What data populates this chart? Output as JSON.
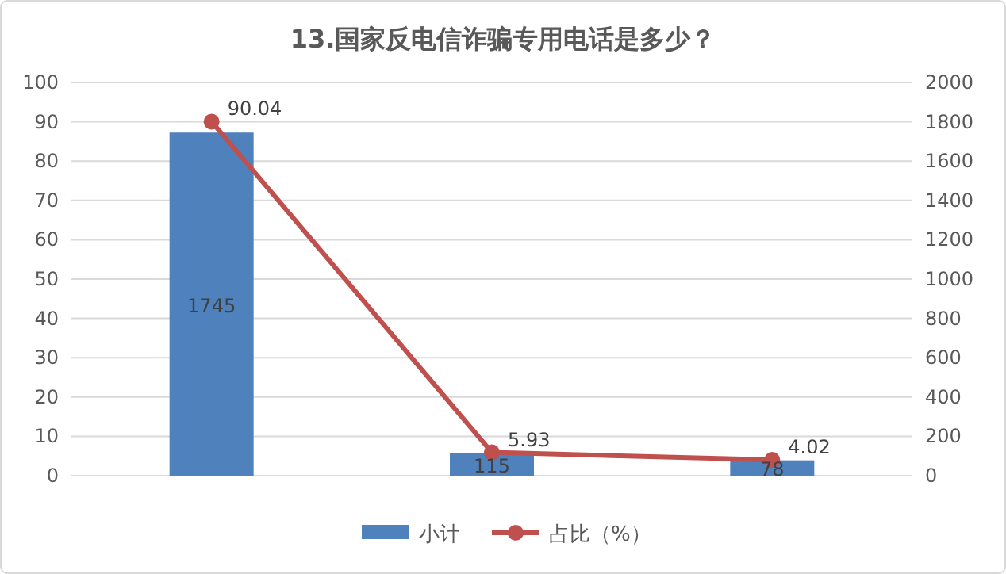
{
  "chart_data": {
    "type": "bar",
    "title": "13.国家反电信诈骗专用电话是多少？",
    "categories": [
      null,
      null,
      null
    ],
    "series": [
      {
        "name": "小计",
        "axis": "y2",
        "color": "#4f81bd",
        "values": [
          1745,
          115,
          78
        ]
      },
      {
        "name": "占比（%）",
        "type": "line",
        "color": "#c0504d",
        "values": [
          90.04,
          5.93,
          4.02
        ]
      }
    ],
    "ylim": [
      0,
      100
    ],
    "yticks": [
      0,
      10,
      20,
      30,
      40,
      50,
      60,
      70,
      80,
      90,
      100
    ],
    "y2lim": [
      0,
      2000
    ],
    "y2ticks": [
      0,
      200,
      400,
      600,
      800,
      1000,
      1200,
      1400,
      1600,
      1800,
      2000
    ],
    "grid": "y",
    "legend": "bottom",
    "marker": "circle",
    "line_style": "solid",
    "data_labels": true
  }
}
